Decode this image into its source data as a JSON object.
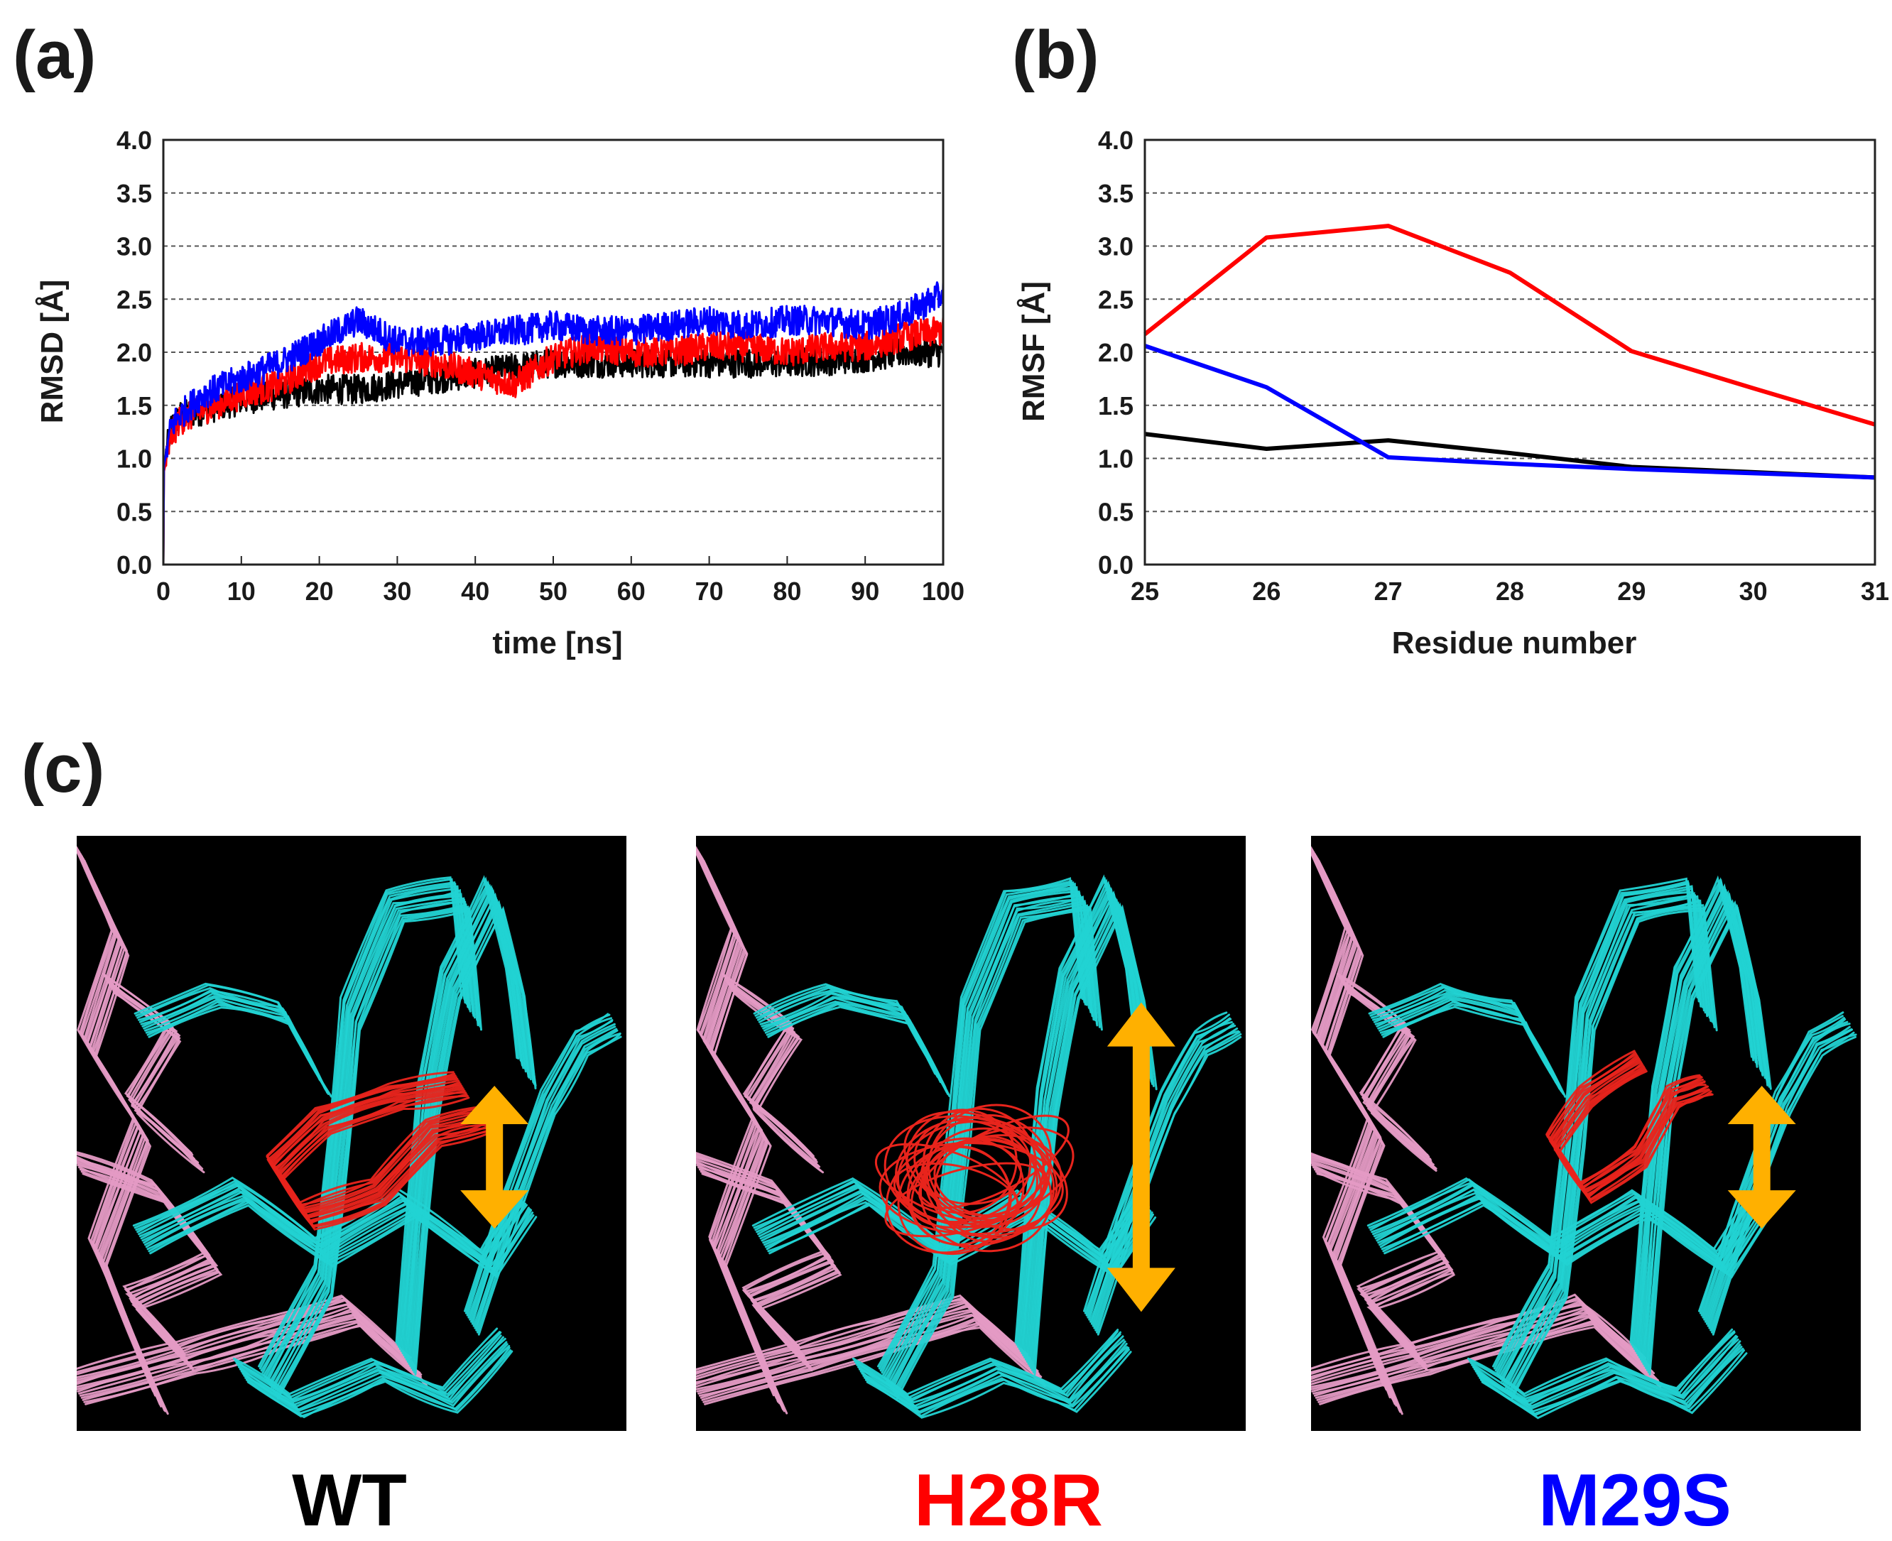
{
  "panels": {
    "a_label": "(a)",
    "b_label": "(b)",
    "c_label": "(c)"
  },
  "colors": {
    "wt": "#000000",
    "h28r": "#ff0000",
    "m29s": "#0000ff",
    "backbone": "#22d3d3",
    "partner": "#e49ac4",
    "loop": "#e8241c",
    "arrow": "#ffb000",
    "background": "#000000"
  },
  "chart_data": [
    {
      "type": "line",
      "panel": "(a)",
      "xlabel": "time [ns]",
      "ylabel": "RMSD [Å]",
      "xlim": [
        0,
        100
      ],
      "ylim": [
        0,
        4
      ],
      "xticks": [
        "0",
        "10",
        "20",
        "30",
        "40",
        "50",
        "60",
        "70",
        "80",
        "90",
        "100"
      ],
      "yticks": [
        "0.0",
        "0.5",
        "1.0",
        "1.5",
        "2.0",
        "2.5",
        "3.0",
        "3.5",
        "4.0"
      ],
      "grid": "horizontal dashed",
      "x": [
        0,
        1,
        2,
        5,
        10,
        15,
        20,
        25,
        30,
        35,
        40,
        45,
        50,
        55,
        60,
        65,
        70,
        75,
        80,
        85,
        90,
        95,
        100
      ],
      "series": [
        {
          "name": "WT",
          "color": "#000000",
          "values": [
            0.9,
            1.3,
            1.4,
            1.45,
            1.55,
            1.6,
            1.65,
            1.65,
            1.7,
            1.75,
            1.8,
            1.85,
            1.9,
            1.9,
            1.9,
            1.9,
            1.9,
            1.9,
            1.9,
            1.92,
            1.95,
            2.0,
            2.0
          ]
        },
        {
          "name": "H28R",
          "color": "#ff0000",
          "values": [
            0.85,
            1.2,
            1.35,
            1.45,
            1.6,
            1.7,
            1.9,
            1.95,
            1.95,
            1.9,
            1.8,
            1.7,
            1.95,
            2.05,
            2.0,
            2.0,
            2.05,
            2.05,
            2.0,
            2.05,
            2.05,
            2.15,
            2.2
          ]
        },
        {
          "name": "M29S",
          "color": "#0000ff",
          "values": [
            0.9,
            1.3,
            1.4,
            1.6,
            1.75,
            1.9,
            2.1,
            2.3,
            2.1,
            2.1,
            2.15,
            2.2,
            2.25,
            2.2,
            2.2,
            2.25,
            2.3,
            2.25,
            2.3,
            2.3,
            2.25,
            2.35,
            2.55
          ]
        }
      ]
    },
    {
      "type": "line",
      "panel": "(b)",
      "xlabel": "Residue number",
      "ylabel": "RMSF [Å]",
      "xlim": [
        25,
        31
      ],
      "ylim": [
        0,
        4
      ],
      "xticks": [
        "25",
        "26",
        "27",
        "28",
        "29",
        "30",
        "31"
      ],
      "yticks": [
        "0.0",
        "0.5",
        "1.0",
        "1.5",
        "2.0",
        "2.5",
        "3.0",
        "3.5",
        "4.0"
      ],
      "grid": "horizontal dashed",
      "x": [
        25,
        26,
        27,
        28,
        29,
        30,
        31
      ],
      "series": [
        {
          "name": "WT",
          "color": "#000000",
          "values": [
            1.23,
            1.09,
            1.17,
            1.05,
            0.92,
            0.87,
            0.82
          ]
        },
        {
          "name": "H28R",
          "color": "#ff0000",
          "values": [
            2.17,
            3.08,
            3.19,
            2.75,
            2.01,
            1.66,
            1.32
          ]
        },
        {
          "name": "M29S",
          "color": "#0000ff",
          "values": [
            2.06,
            1.67,
            1.01,
            0.95,
            0.9,
            0.86,
            0.82
          ]
        }
      ]
    }
  ],
  "structures": [
    {
      "label": "WT",
      "color": "#000000",
      "arrow_scale": "short"
    },
    {
      "label": "H28R",
      "color": "#ff0000",
      "arrow_scale": "long"
    },
    {
      "label": "M29S",
      "color": "#0000ff",
      "arrow_scale": "short"
    }
  ]
}
